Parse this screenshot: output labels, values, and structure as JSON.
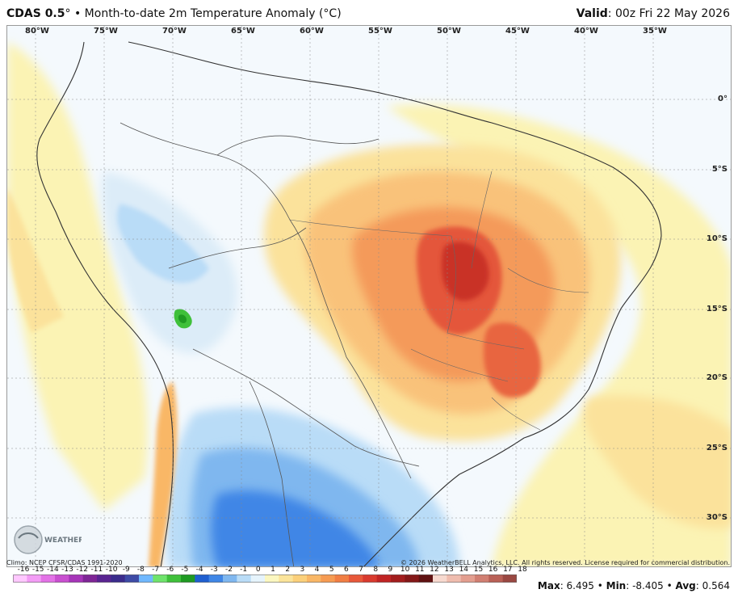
{
  "header": {
    "model": "CDAS 0.5",
    "degree": "°",
    "separator": " • ",
    "field": "Month-to-date 2m Temperature Anomaly (°C)",
    "valid_label": "Valid",
    "valid_time": ": 00z Fri 22 May 2026"
  },
  "map": {
    "lon_labels": [
      "80°W",
      "75°W",
      "70°W",
      "65°W",
      "60°W",
      "55°W",
      "50°W",
      "45°W",
      "40°W",
      "35°W"
    ],
    "lat_labels": [
      "0°",
      "5°S",
      "10°S",
      "15°S",
      "20°S",
      "25°S",
      "30°S"
    ],
    "logo_text": "WEATHERBELL"
  },
  "footer": {
    "climo": "Climo: NCEP CFSR/CDAS 1991-2020",
    "copyright": "© 2026 WeatherBELL Analytics, LLC. All rights reserved. License required for commercial distribution."
  },
  "colorbar": {
    "ticks": [
      "-16",
      "-15",
      "-14",
      "-13",
      "-12",
      "-11",
      "-10",
      "-9",
      "-8",
      "-7",
      "-6",
      "-5",
      "-4",
      "-3",
      "-2",
      "-1",
      "0",
      "1",
      "2",
      "3",
      "4",
      "5",
      "6",
      "7",
      "8",
      "9",
      "10",
      "11",
      "12",
      "13",
      "14",
      "15",
      "16",
      "17",
      "18"
    ],
    "colors": [
      "#ffc8ff",
      "#f39cf5",
      "#e372e6",
      "#c94fd0",
      "#a634b8",
      "#7f2596",
      "#5a2491",
      "#3b2c8c",
      "#3e4ba6",
      "#70b8ff",
      "#6fe36c",
      "#3fc03a",
      "#1f9a22",
      "#1f5fd0",
      "#3f86e6",
      "#7fb7ef",
      "#b9dcf7",
      "#e6f4fc",
      "#fbf7c0",
      "#fbe49a",
      "#fbd07b",
      "#f9b766",
      "#f69b52",
      "#f17e44",
      "#e8583a",
      "#d93a2e",
      "#c02424",
      "#a31d1d",
      "#841818",
      "#601212",
      "#f7d9cf",
      "#efbcae",
      "#e39e8f",
      "#d17f72",
      "#b96056",
      "#9a4842"
    ]
  },
  "stats": {
    "max_label": "Max",
    "max_value": ": 6.495",
    "min_label": "Min",
    "min_value": ": -8.405",
    "avg_label": "Avg",
    "avg_value": ": 0.564",
    "dot": " • "
  }
}
